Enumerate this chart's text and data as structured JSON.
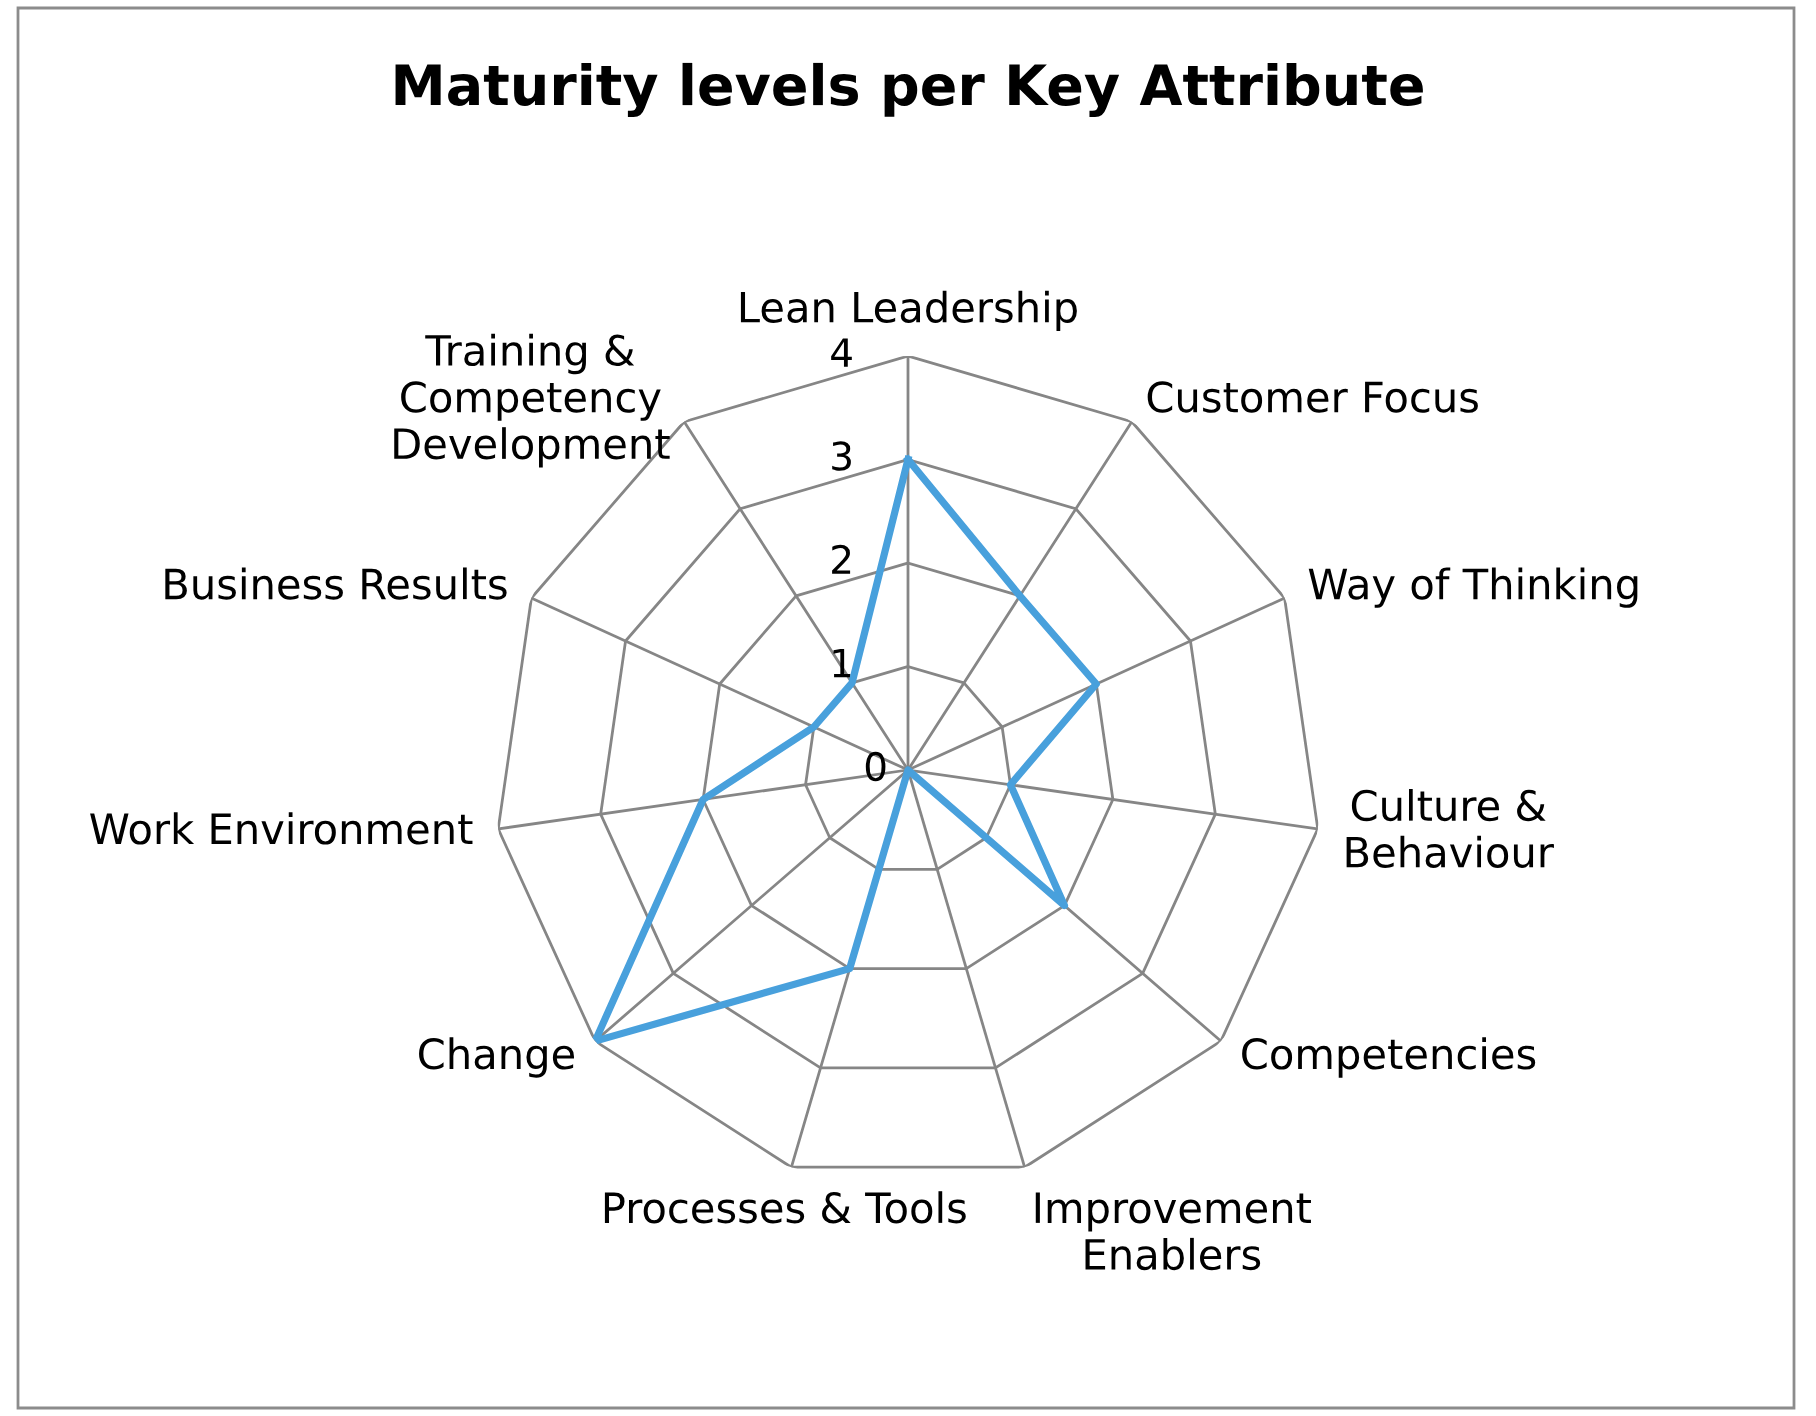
{
  "chart_data": {
    "type": "radar",
    "title": "Maturity levels per Key Attribute",
    "categories": [
      "Lean Leadership",
      "Customer Focus",
      "Way of Thinking",
      "Culture &\nBehaviour",
      "Competencies",
      "Improvement\nEnablers",
      "Processes & Tools",
      "Change",
      "Work Environment",
      "Business Results",
      "Training &\nCompetency\nDevelopment"
    ],
    "series": [
      {
        "color": "#48a0dc",
        "values": [
          3,
          2,
          2,
          1,
          2,
          0,
          2,
          4,
          2,
          1,
          1
        ]
      }
    ],
    "ylim": [
      0,
      4
    ],
    "yticks": [
      0,
      1,
      2,
      3,
      4
    ],
    "grid": true
  }
}
